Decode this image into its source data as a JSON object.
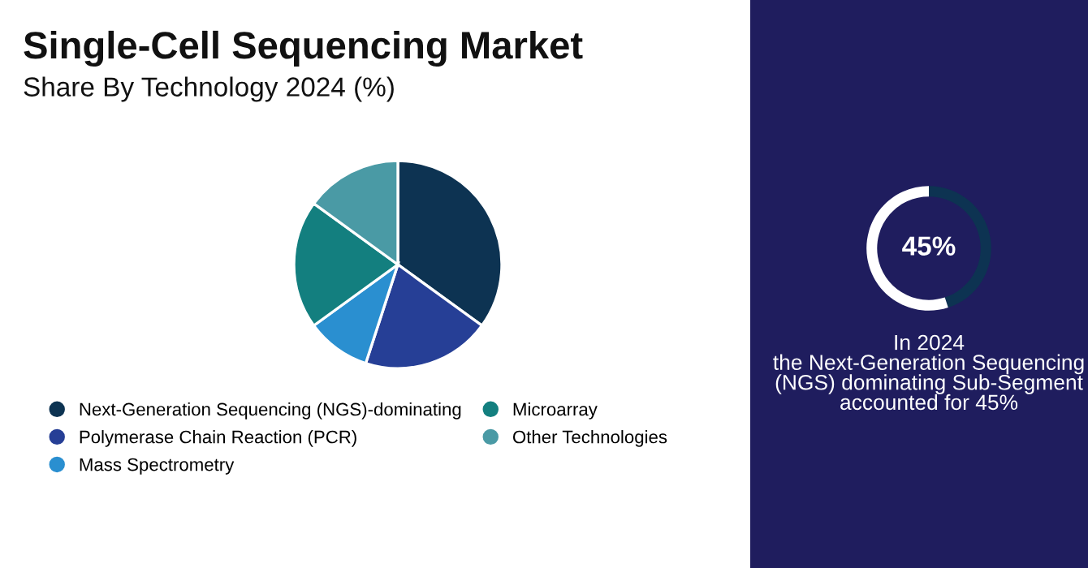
{
  "chart_data": [
    {
      "type": "pie",
      "title": "Single-Cell Sequencing Market",
      "subtitle": "Share By Technology 2024 (%)",
      "categories": [
        "Next-Generation Sequencing (NGS)-dominating",
        "Polymerase Chain Reaction (PCR)",
        "Mass Spectrometry",
        "Microarray",
        "Other Technologies"
      ],
      "values": [
        35,
        20,
        10,
        20,
        15
      ],
      "colors": [
        "#0d3352",
        "#263f96",
        "#2a8fd0",
        "#137f7f",
        "#4a9aa5"
      ],
      "legend": "bottom"
    },
    {
      "type": "donut",
      "categories": [
        null,
        null
      ],
      "values": [
        45,
        55
      ],
      "colors": [
        "#0d3352",
        "#ffffff"
      ],
      "value_labels": [
        "45%",
        null
      ],
      "annotations": [
        "In 2024\nthe Next-Generation Sequencing\n(NGS) dominating Sub-Segment\naccounted for 45%"
      ],
      "legend": false
    }
  ]
}
